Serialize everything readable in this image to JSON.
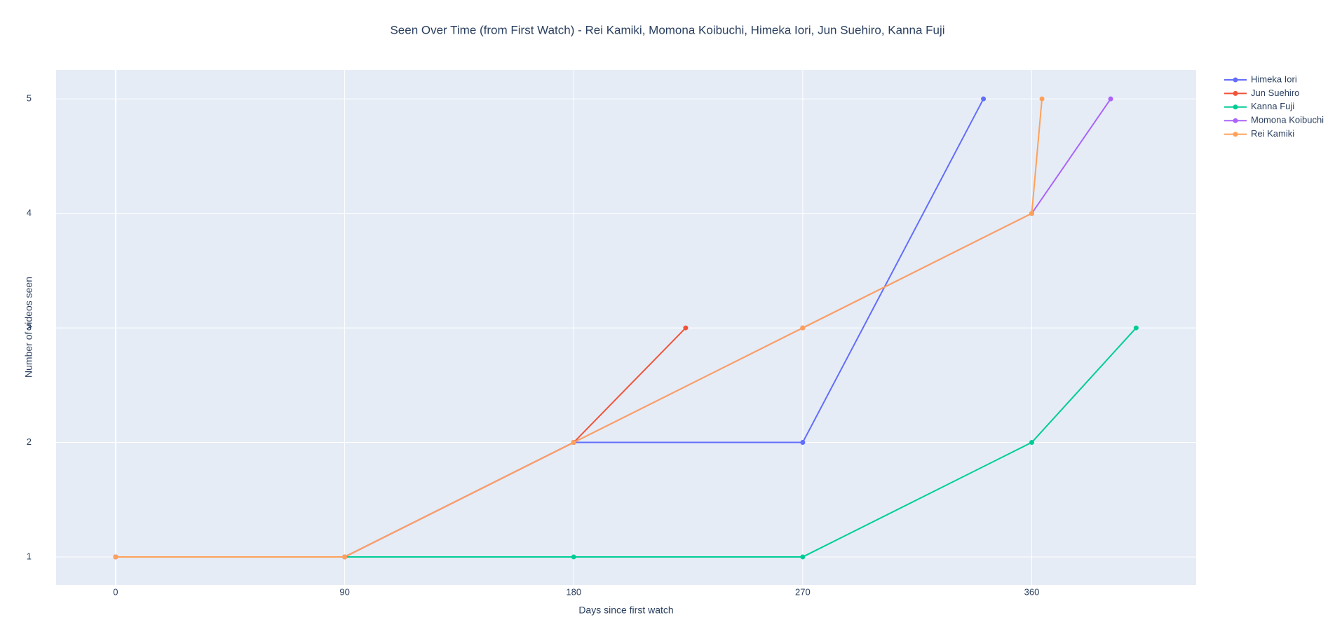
{
  "chart_data": {
    "type": "line",
    "title": "Seen Over Time (from First Watch) - Rei Kamiki, Momona Koibuchi, Himeka Iori, Jun Suehiro, Kanna Fuji",
    "x_label": "Days since first watch",
    "y_label": "Number of videos seen",
    "xlim": [
      -23.4,
      424.6
    ],
    "xticks": [
      0,
      90,
      180,
      270,
      360
    ],
    "ylim": [
      0.755,
      5.252
    ],
    "yticks": [
      1,
      2,
      3,
      4,
      5
    ],
    "grid": true,
    "legend": "outside-right",
    "series": [
      {
        "name": "Himeka Iori",
        "color": "#636efa",
        "x": [
          0,
          90,
          180,
          270,
          341
        ],
        "values": [
          1,
          1,
          2,
          2,
          5
        ]
      },
      {
        "name": "Jun Suehiro",
        "color": "#ef553b",
        "x": [
          0,
          90,
          180,
          224
        ],
        "values": [
          1,
          1,
          2,
          3
        ]
      },
      {
        "name": "Kanna Fuji",
        "color": "#00cc96",
        "x": [
          0,
          90,
          180,
          270,
          360,
          401
        ],
        "values": [
          1,
          1,
          1,
          1,
          2,
          3
        ]
      },
      {
        "name": "Momona Koibuchi",
        "color": "#ab63fa",
        "x": [
          0,
          90,
          180,
          270,
          360,
          391
        ],
        "values": [
          1,
          1,
          2,
          3,
          4,
          5
        ]
      },
      {
        "name": "Rei Kamiki",
        "color": "#ffa15a",
        "x": [
          0,
          90,
          180,
          270,
          360,
          364
        ],
        "values": [
          1,
          1,
          2,
          3,
          4,
          5
        ]
      }
    ]
  }
}
